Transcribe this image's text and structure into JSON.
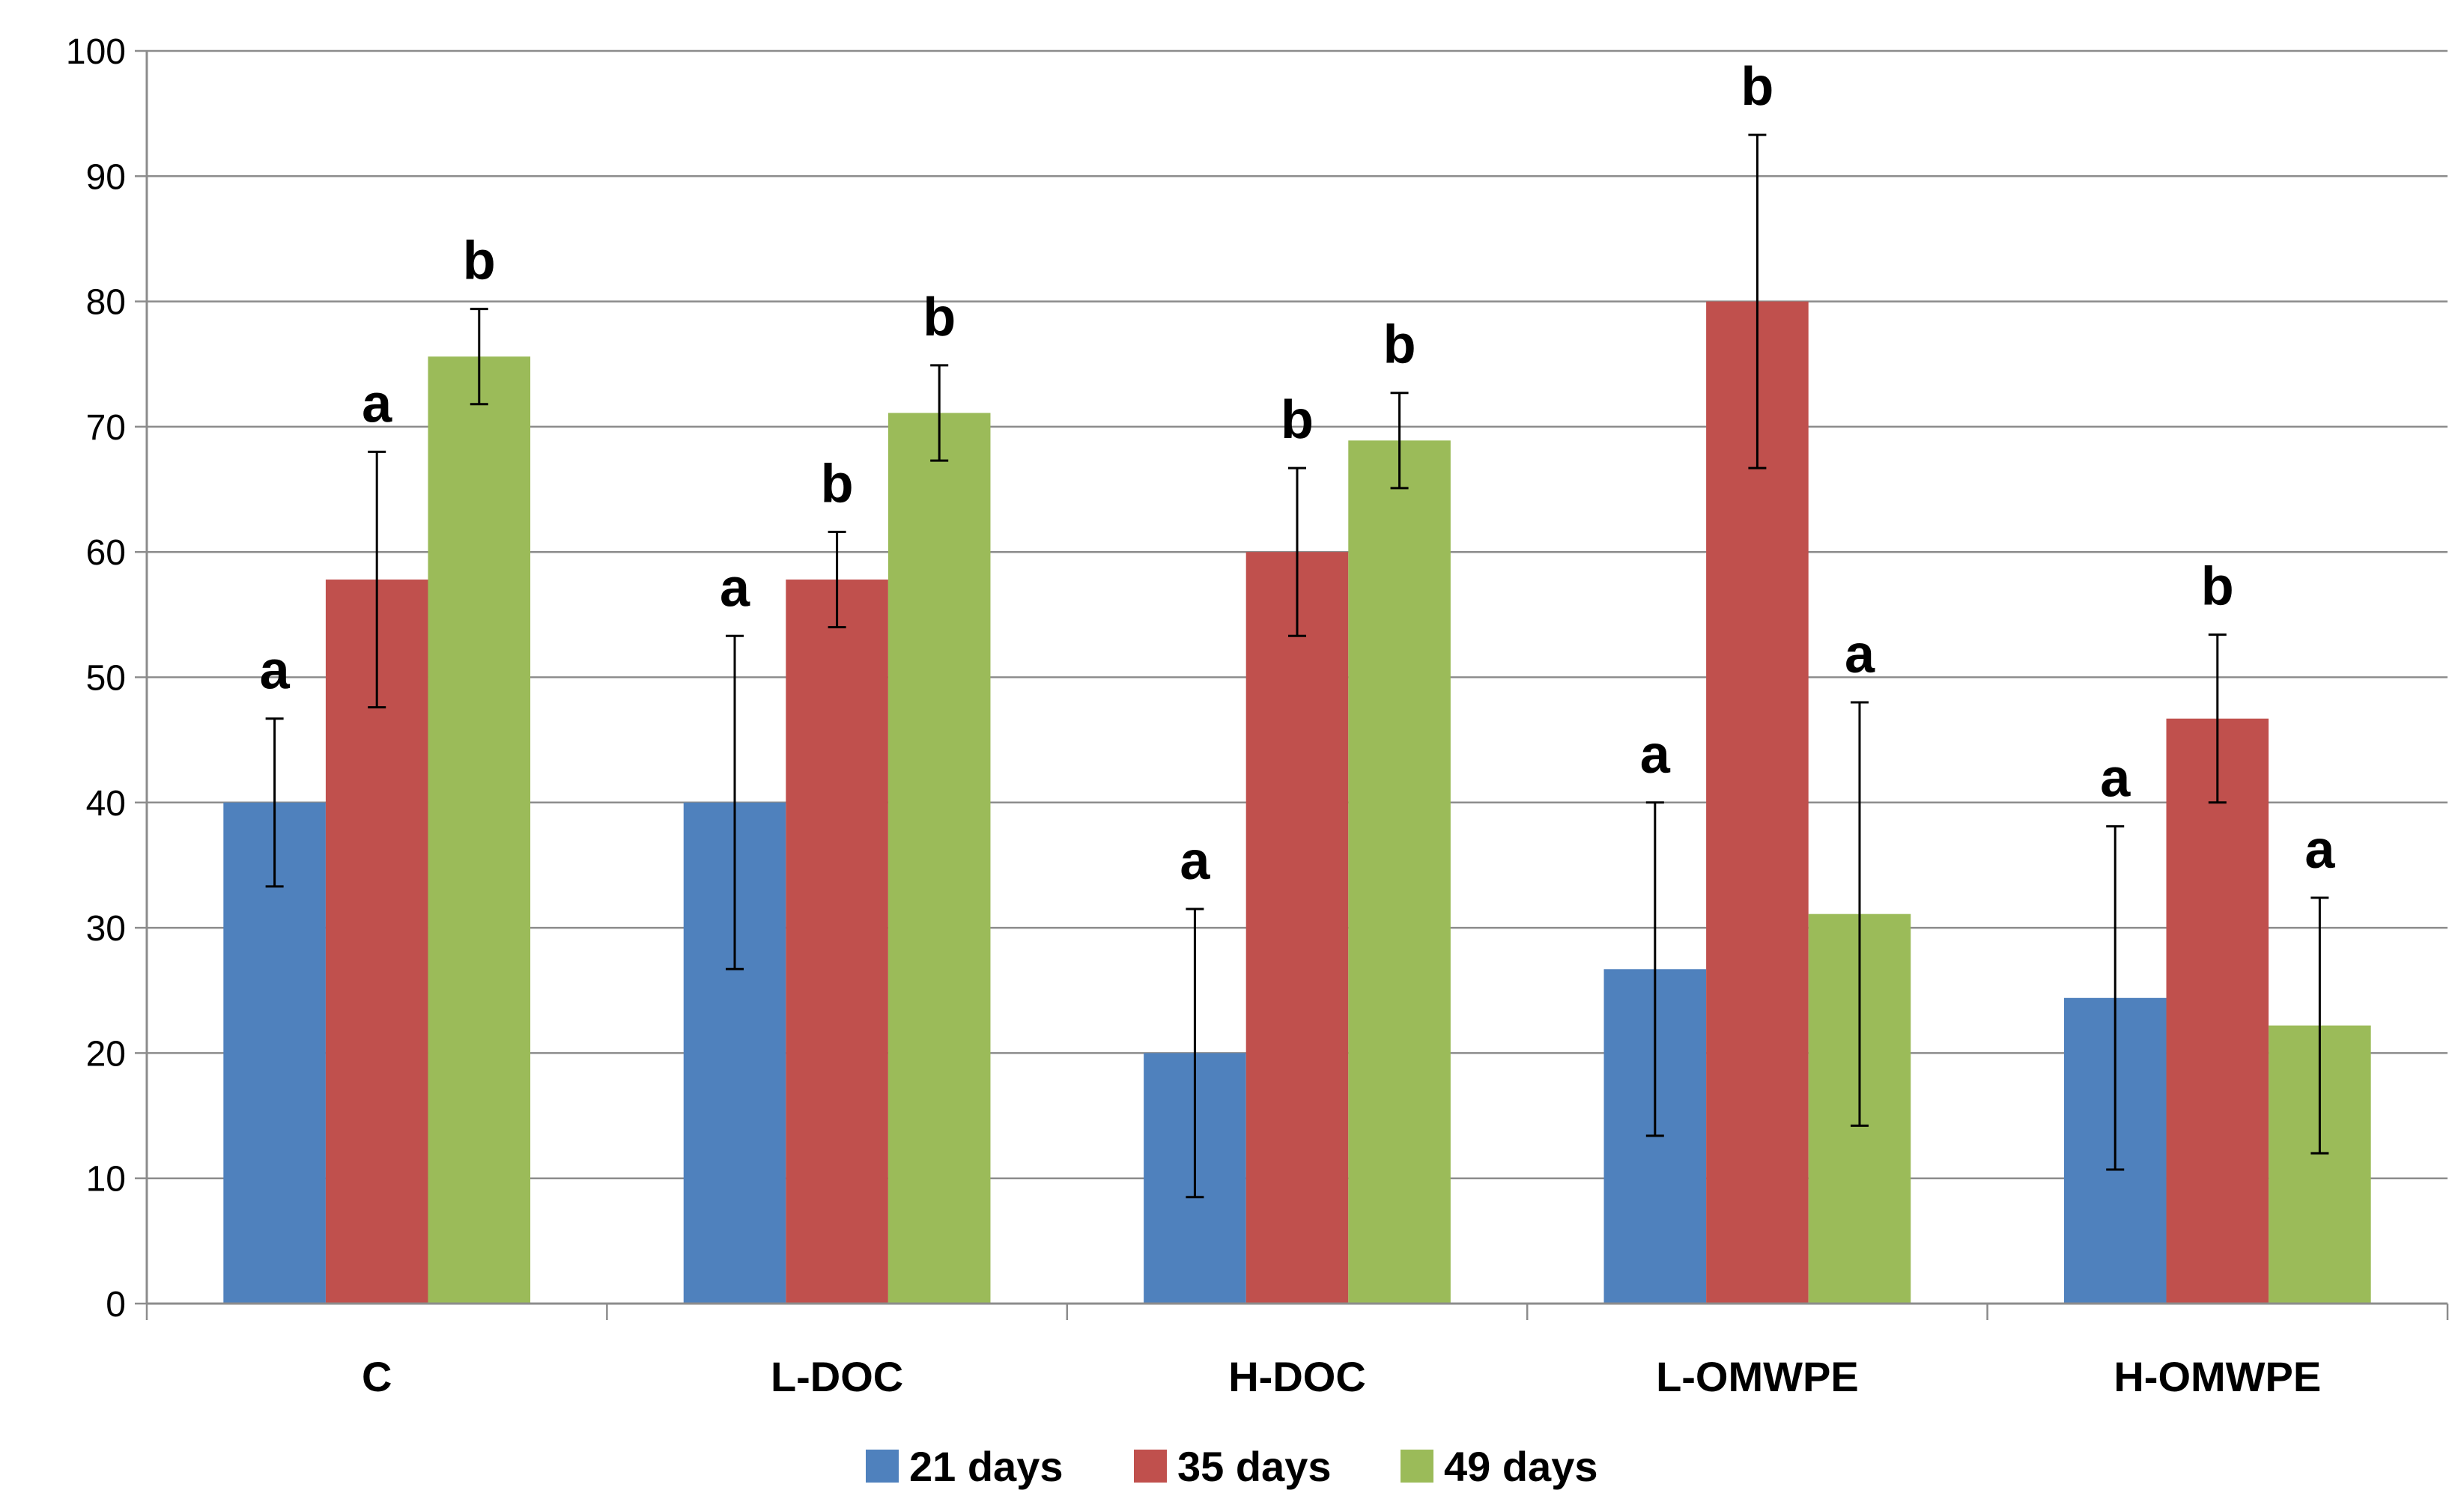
{
  "chart_data": {
    "type": "bar",
    "title": "",
    "xlabel": "",
    "ylabel": "",
    "ylim": [
      0,
      100
    ],
    "yticks": [
      0,
      10,
      20,
      30,
      40,
      50,
      60,
      70,
      80,
      90,
      100
    ],
    "grid": true,
    "legend_position": "bottom",
    "categories": [
      "C",
      "L-DOC",
      "H-DOC",
      "L-OMWPE",
      "H-OMWPE"
    ],
    "series": [
      {
        "name": "21 days",
        "color": "#4f81bd",
        "values": [
          40,
          40,
          20,
          26.7,
          24.4
        ],
        "errors": [
          6.7,
          13.3,
          11.5,
          13.3,
          13.7
        ],
        "labels": [
          "a",
          "a",
          "a",
          "a",
          "a"
        ]
      },
      {
        "name": "35 days",
        "color": "#c0504d",
        "values": [
          57.8,
          57.8,
          60,
          80,
          46.7
        ],
        "errors": [
          10.2,
          3.8,
          6.7,
          13.3,
          6.7
        ],
        "labels": [
          "a",
          "b",
          "b",
          "b",
          "b"
        ]
      },
      {
        "name": "49 days",
        "color": "#9bbb59",
        "values": [
          75.6,
          71.1,
          68.9,
          31.1,
          22.2
        ],
        "errors": [
          3.8,
          3.8,
          3.8,
          16.9,
          10.2
        ],
        "labels": [
          "b",
          "b",
          "b",
          "a",
          "a"
        ]
      }
    ]
  }
}
